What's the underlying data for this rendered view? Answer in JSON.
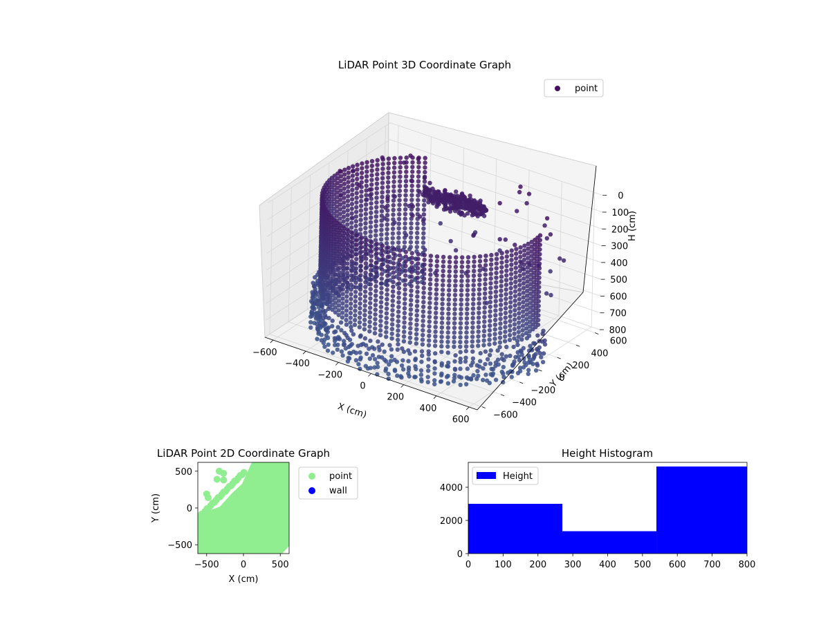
{
  "chart_data": [
    {
      "type": "scatter3d",
      "title": "LiDAR Point 3D Coordinate Graph",
      "xlabel": "X (cm)",
      "ylabel": "Y (cm)",
      "zlabel": "H (cm)",
      "xlim": [
        -650,
        650
      ],
      "ylim": [
        -650,
        650
      ],
      "zlim": [
        0,
        800
      ],
      "z_inverted": true,
      "x_ticks": [
        "−600",
        "−400",
        "−200",
        "0",
        "200",
        "400",
        "600"
      ],
      "y_ticks": [
        "−600",
        "−400",
        "−200",
        "0",
        "200",
        "400",
        "600"
      ],
      "z_ticks": [
        "0",
        "100",
        "200",
        "300",
        "400",
        "500",
        "600",
        "700",
        "800"
      ],
      "legend": [
        "point"
      ],
      "legend_position": "top-right",
      "colormap": "viridis",
      "point_color": "#440f5f",
      "grid": true,
      "series": [
        {
          "name": "point",
          "description_points": {
            "cylinder_wall": {
              "angle_deg_start": 125,
              "angle_deg_end": 370,
              "radius": 600,
              "h_range": [
                50,
                800
              ]
            },
            "ceiling_cluster_center": [
              -120,
              420,
              210
            ],
            "ceiling_cluster_radius": 150
          }
        }
      ]
    },
    {
      "type": "scatter",
      "title": "LiDAR Point 2D Coordinate Graph",
      "xlabel": "X (cm)",
      "ylabel": "Y (cm)",
      "xlim": [
        -620,
        620
      ],
      "ylim": [
        -620,
        620
      ],
      "x_ticks": [
        "−500",
        "0",
        "500"
      ],
      "y_ticks": [
        "−500",
        "0",
        "500"
      ],
      "legend": [
        "point",
        "wall"
      ],
      "legend_position": "outside-right",
      "series": [
        {
          "name": "point",
          "color": "#90ee90"
        },
        {
          "name": "wall",
          "color": "#0000ff"
        }
      ],
      "isolated_points": [
        [
          -330,
          500
        ],
        [
          -270,
          470
        ],
        [
          -360,
          390
        ],
        [
          -270,
          380
        ],
        [
          -500,
          190
        ],
        [
          -480,
          140
        ]
      ]
    },
    {
      "type": "bar",
      "title": "Height Histogram",
      "xlabel": "",
      "ylabel": "",
      "bins": [
        [
          0,
          270
        ],
        [
          270,
          540
        ],
        [
          540,
          810
        ]
      ],
      "values": [
        3000,
        1350,
        5250
      ],
      "xlim": [
        0,
        800
      ],
      "ylim": [
        0,
        5500
      ],
      "x_ticks": [
        "0",
        "100",
        "200",
        "300",
        "400",
        "500",
        "600",
        "700",
        "800"
      ],
      "y_ticks": [
        "0",
        "2000",
        "4000"
      ],
      "legend": [
        "Height"
      ],
      "legend_position": "top-left",
      "series": [
        {
          "name": "Height",
          "color": "#0000ff"
        }
      ]
    }
  ]
}
